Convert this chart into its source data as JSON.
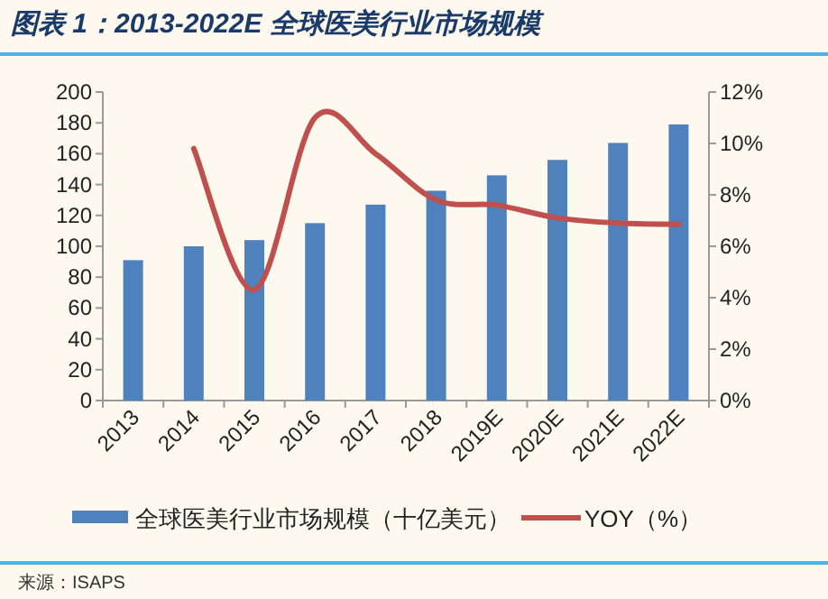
{
  "chart_data": {
    "type": "bar",
    "title": "图表 1：2013-2022E 全球医美行业市场规模",
    "categories": [
      "2013",
      "2014",
      "2015",
      "2016",
      "2017",
      "2018",
      "2019E",
      "2020E",
      "2021E",
      "2022E"
    ],
    "series": [
      {
        "name": "全球医美行业市场规模（十亿美元）",
        "color": "#4f81bd",
        "values": [
          91,
          100,
          104,
          115,
          127,
          136,
          146,
          156,
          167,
          179
        ]
      },
      {
        "name": "YOY（%）",
        "type": "line",
        "axis": "y2",
        "color": "#c0504d",
        "values": [
          null,
          9.8,
          4.3,
          11.0,
          9.6,
          7.8,
          7.6,
          7.1,
          6.9,
          6.85
        ]
      }
    ],
    "ylim": [
      0,
      200
    ],
    "yticks": [
      0,
      20,
      40,
      60,
      80,
      100,
      120,
      140,
      160,
      180,
      200
    ],
    "y2lim": [
      0,
      12
    ],
    "y2ticks": [
      {
        "value": 0,
        "label": "0%"
      },
      {
        "value": 2,
        "label": "2%"
      },
      {
        "value": 4,
        "label": "4%"
      },
      {
        "value": 6,
        "label": "6%"
      },
      {
        "value": 8,
        "label": "8%"
      },
      {
        "value": 10,
        "label": "10%"
      },
      {
        "value": 12,
        "label": "12%"
      }
    ],
    "grid": false,
    "legend": "bottom",
    "annotations": [
      "来源：ISAPS"
    ]
  }
}
